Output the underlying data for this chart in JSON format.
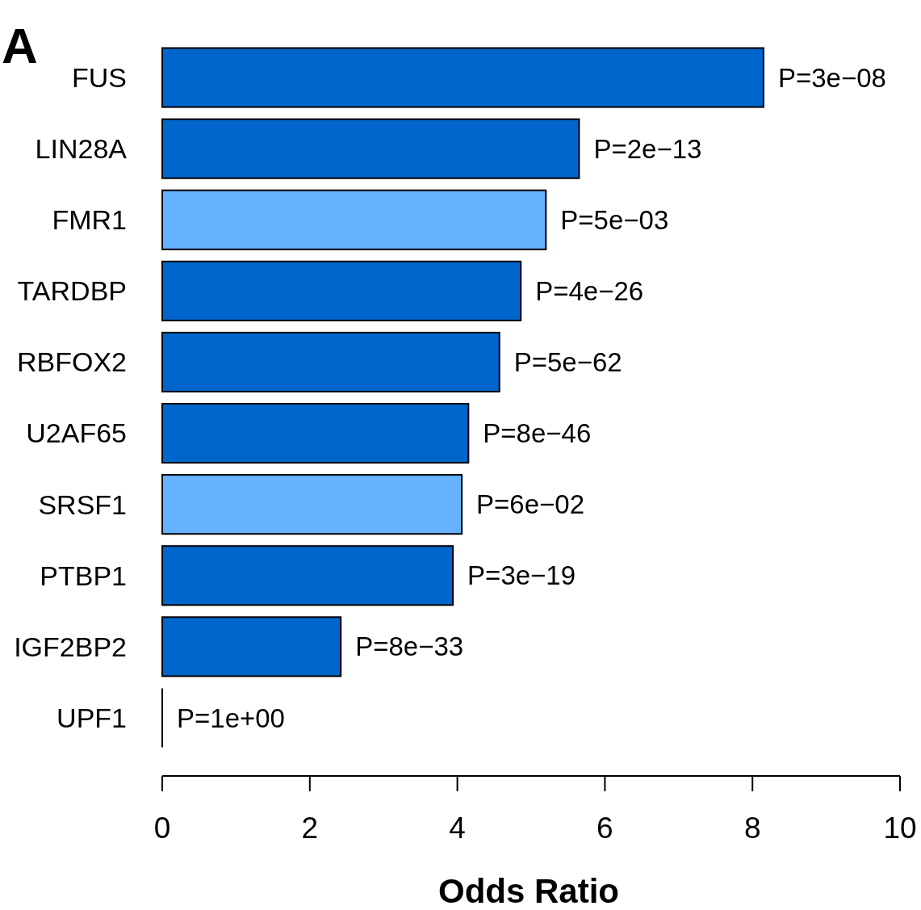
{
  "chart_data": {
    "type": "bar",
    "orientation": "horizontal",
    "title": "A",
    "xlabel": "Odds Ratio",
    "categories": [
      "FUS",
      "LIN28A",
      "FMR1",
      "TARDBP",
      "RBFOX2",
      "U2AF65",
      "SRSF1",
      "PTBP1",
      "IGF2BP2",
      "UPF1"
    ],
    "values": [
      8.15,
      5.65,
      5.2,
      4.86,
      4.57,
      4.15,
      4.06,
      3.94,
      2.42,
      0
    ],
    "colors": [
      "#0066cc",
      "#0066cc",
      "#66b2ff",
      "#0066cc",
      "#0066cc",
      "#0066cc",
      "#66b2ff",
      "#0066cc",
      "#0066cc",
      "#0066cc"
    ],
    "value_labels": [
      "P=3e−08",
      "P=2e−13",
      "P=5e−03",
      "P=4e−26",
      "P=5e−62",
      "P=8e−46",
      "P=6e−02",
      "P=3e−19",
      "P=8e−33",
      "P=1e+00"
    ],
    "xlim": [
      0,
      10
    ],
    "xticks": [
      0,
      2,
      4,
      6,
      8,
      10
    ],
    "grid": false
  }
}
